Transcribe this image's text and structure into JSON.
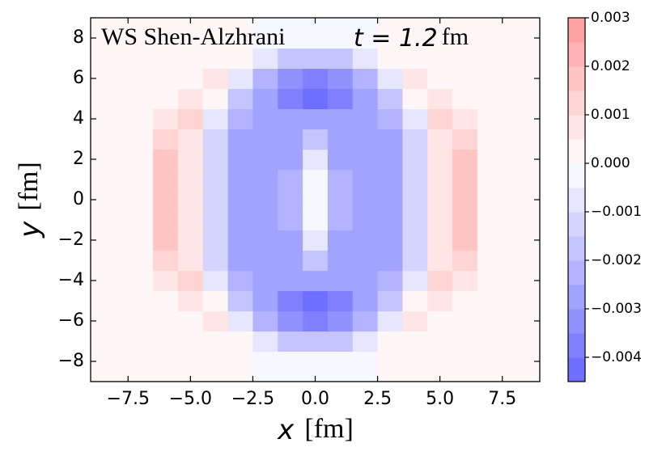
{
  "chart_data": {
    "type": "contour",
    "annotation": {
      "text": "WS  Shen-Alzhrani",
      "time": "t = 1.2",
      "unit": "fm"
    },
    "xlabel": {
      "symbol": "x",
      "unit": "[fm]"
    },
    "ylabel": {
      "symbol": "y",
      "unit": "[fm]"
    },
    "x": [
      -9,
      -8,
      -7,
      -6,
      -5,
      -4,
      -3,
      -2,
      -1,
      0,
      1,
      2,
      3,
      4,
      5,
      6,
      7,
      8,
      9
    ],
    "y": [
      -9,
      -8,
      -7,
      -6,
      -5,
      -4,
      -3,
      -2,
      -1,
      0,
      1,
      2,
      3,
      4,
      5,
      6,
      7,
      8,
      9
    ],
    "z": [
      [
        0.0002,
        0.0002,
        0.0002,
        0.0002,
        0.0002,
        0.0002,
        0.0002,
        -0.0002,
        -0.0002,
        -0.0002,
        -0.0002,
        -0.0002,
        0.0002,
        0.0002,
        0.0002,
        0.0002,
        0.0002,
        0.0002,
        0.0002
      ],
      [
        0.0002,
        0.0002,
        0.0002,
        0.0002,
        0.0002,
        0.0002,
        0.0002,
        -0.0002,
        -0.0002,
        -0.0002,
        -0.0002,
        -0.0002,
        0.0002,
        0.0002,
        0.0002,
        0.0002,
        0.0002,
        0.0002,
        0.0002
      ],
      [
        0.0002,
        0.0002,
        0.0002,
        0.0002,
        0.0002,
        0.0002,
        0.0002,
        -0.0008,
        -0.0016,
        -0.0018,
        -0.0016,
        -0.0008,
        0.0002,
        0.0002,
        0.0002,
        0.0002,
        0.0002,
        0.0002,
        0.0002
      ],
      [
        0.0002,
        0.0002,
        0.0002,
        0.0002,
        0.0004,
        0.0005,
        -0.0008,
        -0.0022,
        -0.0032,
        -0.0038,
        -0.0032,
        -0.0022,
        -0.0008,
        0.0005,
        0.0004,
        0.0002,
        0.0002,
        0.0002,
        0.0002
      ],
      [
        0.0002,
        0.0002,
        0.0002,
        0.0003,
        0.0008,
        0.0002,
        -0.002,
        -0.0028,
        -0.0036,
        -0.0042,
        -0.0036,
        -0.0028,
        -0.002,
        0.0002,
        0.0008,
        0.0003,
        0.0002,
        0.0002,
        0.0002
      ],
      [
        0.0002,
        0.0002,
        0.0002,
        0.0006,
        0.0011,
        -0.0006,
        -0.0025,
        -0.003,
        -0.003,
        -0.0028,
        -0.003,
        -0.003,
        -0.0025,
        -0.0006,
        0.0011,
        0.0006,
        0.0002,
        0.0002,
        0.0002
      ],
      [
        0.0002,
        0.0002,
        0.0002,
        0.0012,
        0.0009,
        -0.0012,
        -0.0027,
        -0.003,
        -0.0028,
        -0.0018,
        -0.0028,
        -0.003,
        -0.0027,
        -0.0012,
        0.0009,
        0.0012,
        0.0002,
        0.0002,
        0.0002
      ],
      [
        0.0002,
        0.0002,
        0.0003,
        0.0016,
        0.0008,
        -0.0015,
        -0.0028,
        -0.003,
        -0.0027,
        -0.001,
        -0.0027,
        -0.003,
        -0.0028,
        -0.0015,
        0.0008,
        0.0016,
        0.0003,
        0.0002,
        0.0002
      ],
      [
        0.0002,
        0.0002,
        0.0003,
        0.0018,
        0.0008,
        -0.0015,
        -0.0028,
        -0.003,
        -0.0025,
        -0.0005,
        -0.0025,
        -0.003,
        -0.0028,
        -0.0015,
        0.0008,
        0.0018,
        0.0003,
        0.0002,
        0.0002
      ],
      [
        0.0002,
        0.0002,
        0.0003,
        0.0018,
        0.0008,
        -0.0015,
        -0.0028,
        -0.003,
        -0.0025,
        -0.0002,
        -0.0025,
        -0.003,
        -0.0028,
        -0.0015,
        0.0008,
        0.0018,
        0.0003,
        0.0002,
        0.0002
      ],
      [
        0.0002,
        0.0002,
        0.0003,
        0.0018,
        0.0008,
        -0.0015,
        -0.0028,
        -0.003,
        -0.0025,
        -0.0005,
        -0.0025,
        -0.003,
        -0.0028,
        -0.0015,
        0.0008,
        0.0018,
        0.0003,
        0.0002,
        0.0002
      ],
      [
        0.0002,
        0.0002,
        0.0003,
        0.0016,
        0.0008,
        -0.0015,
        -0.0028,
        -0.003,
        -0.0027,
        -0.001,
        -0.0027,
        -0.003,
        -0.0028,
        -0.0015,
        0.0008,
        0.0016,
        0.0003,
        0.0002,
        0.0002
      ],
      [
        0.0002,
        0.0002,
        0.0002,
        0.0012,
        0.0009,
        -0.0012,
        -0.0027,
        -0.003,
        -0.0028,
        -0.0018,
        -0.0028,
        -0.003,
        -0.0027,
        -0.0012,
        0.0009,
        0.0012,
        0.0002,
        0.0002,
        0.0002
      ],
      [
        0.0002,
        0.0002,
        0.0002,
        0.0006,
        0.0011,
        -0.0006,
        -0.0025,
        -0.003,
        -0.003,
        -0.0028,
        -0.003,
        -0.003,
        -0.0025,
        -0.0006,
        0.0011,
        0.0006,
        0.0002,
        0.0002,
        0.0002
      ],
      [
        0.0002,
        0.0002,
        0.0002,
        0.0003,
        0.0008,
        0.0002,
        -0.002,
        -0.0028,
        -0.0036,
        -0.0042,
        -0.0036,
        -0.0028,
        -0.002,
        0.0002,
        0.0008,
        0.0003,
        0.0002,
        0.0002,
        0.0002
      ],
      [
        0.0002,
        0.0002,
        0.0002,
        0.0002,
        0.0004,
        0.0005,
        -0.0008,
        -0.0022,
        -0.0032,
        -0.0038,
        -0.0032,
        -0.0022,
        -0.0008,
        0.0005,
        0.0004,
        0.0002,
        0.0002,
        0.0002,
        0.0002
      ],
      [
        0.0002,
        0.0002,
        0.0002,
        0.0002,
        0.0002,
        0.0002,
        0.0002,
        -0.0008,
        -0.0016,
        -0.0018,
        -0.0016,
        -0.0008,
        0.0002,
        0.0002,
        0.0002,
        0.0002,
        0.0002,
        0.0002,
        0.0002
      ],
      [
        0.0002,
        0.0002,
        0.0002,
        0.0002,
        0.0002,
        0.0002,
        0.0002,
        -0.0002,
        -0.0002,
        -0.0002,
        -0.0002,
        -0.0002,
        0.0002,
        0.0002,
        0.0002,
        0.0002,
        0.0002,
        0.0002,
        0.0002
      ],
      [
        0.0002,
        0.0002,
        0.0002,
        0.0002,
        0.0002,
        0.0002,
        0.0002,
        -0.0002,
        -0.0002,
        -0.0002,
        -0.0002,
        -0.0002,
        0.0002,
        0.0002,
        0.0002,
        0.0002,
        0.0002,
        0.0002,
        0.0002
      ]
    ],
    "levels": [
      -0.0045,
      -0.004,
      -0.0035,
      -0.003,
      -0.0025,
      -0.002,
      -0.0015,
      -0.001,
      -0.0005,
      0,
      0.0005,
      0.001,
      0.0015,
      0.002,
      0.0025,
      0.003
    ],
    "colormap": "bwr",
    "color_norm": [
      -0.0045,
      0.0045
    ],
    "alpha": 0.6,
    "xlim": [
      -9,
      9
    ],
    "ylim": [
      -9,
      9
    ],
    "xticks": [
      {
        "value": -7.5,
        "label": "−7.5"
      },
      {
        "value": -5,
        "label": "−5.0"
      },
      {
        "value": -2.5,
        "label": "−2.5"
      },
      {
        "value": 0,
        "label": "0.0"
      },
      2.5,
      {
        "value": 5,
        "label": "5.0"
      },
      7.5
    ],
    "yticks": [
      {
        "value": -8,
        "label": "−8"
      },
      {
        "value": -6,
        "label": "−6"
      },
      {
        "value": -4,
        "label": "−4"
      },
      {
        "value": -2,
        "label": "−2"
      },
      0,
      2,
      4,
      6,
      8
    ],
    "cbar_ticks": [
      {
        "value": -0.004,
        "label": "−0.004"
      },
      {
        "value": -0.003,
        "label": "−0.003"
      },
      {
        "value": -0.002,
        "label": "−0.002"
      },
      {
        "value": -0.001,
        "label": "−0.001"
      },
      {
        "value": 0,
        "label": "0.000"
      },
      0.001,
      0.002,
      0.003
    ]
  }
}
